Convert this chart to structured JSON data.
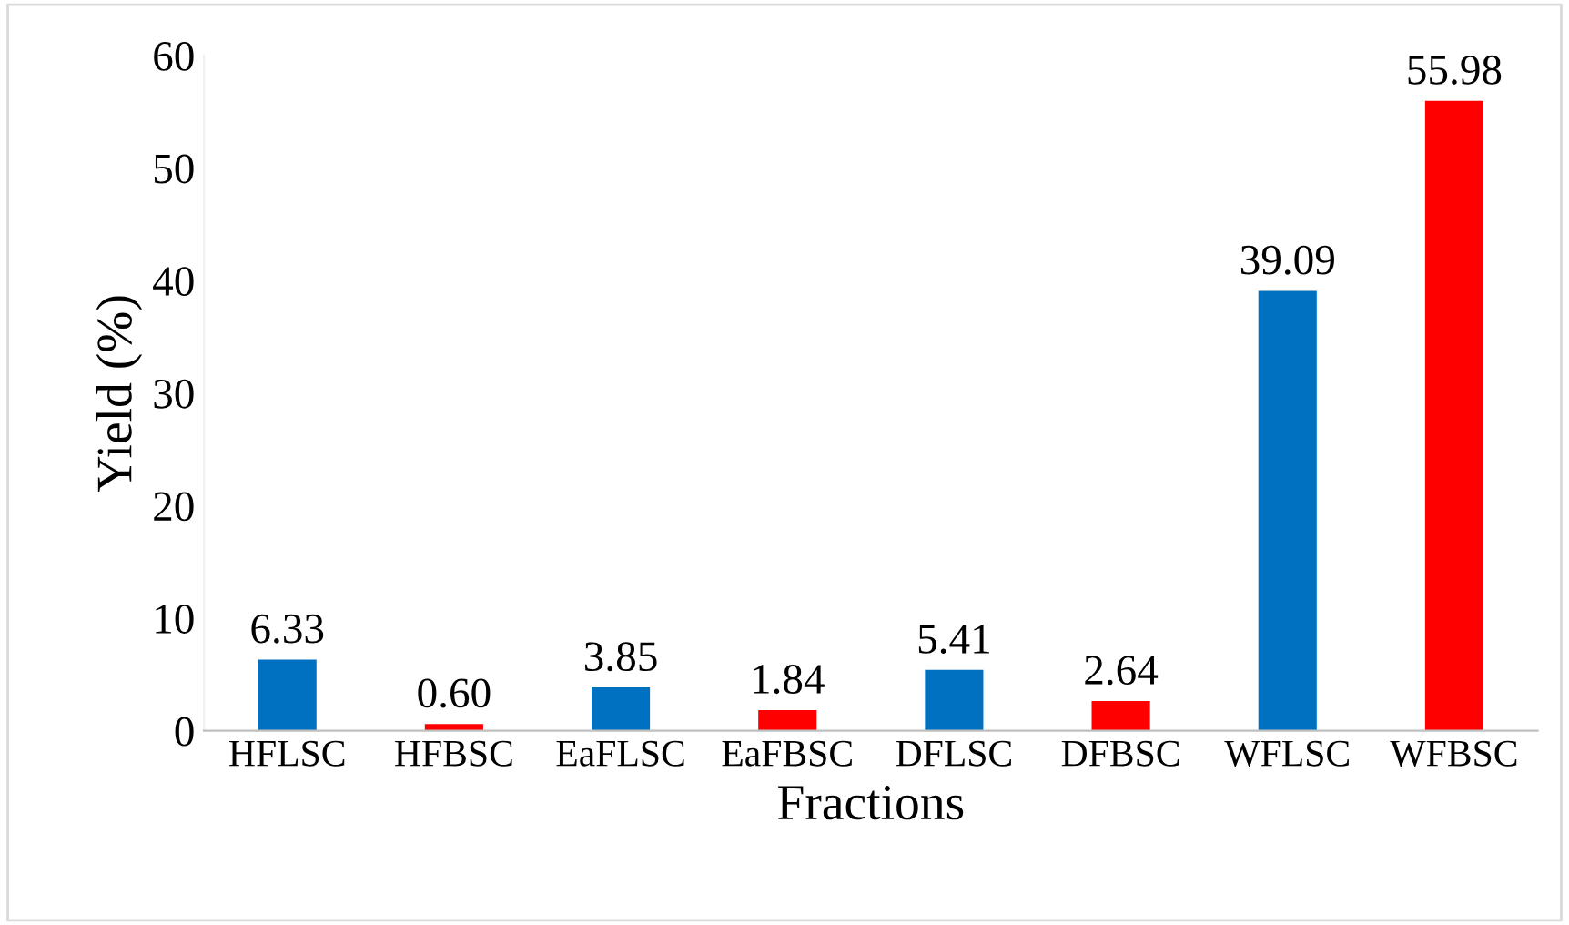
{
  "chart_data": {
    "type": "bar",
    "xlabel": "Fractions",
    "ylabel": "Yield (%)",
    "categories": [
      "HFLSC",
      "HFBSC",
      "EaFLSC",
      "EaFBSC",
      "DFLSC",
      "DFBSC",
      "WFLSC",
      "WFBSC"
    ],
    "values": [
      6.33,
      0.6,
      3.85,
      1.84,
      5.41,
      2.64,
      39.09,
      55.98
    ],
    "value_labels": [
      "6.33",
      "0.60",
      "3.85",
      "1.84",
      "5.41",
      "2.64",
      "39.09",
      "55.98"
    ],
    "colors": [
      "#0070c0",
      "#ff0000",
      "#0070c0",
      "#ff0000",
      "#0070c0",
      "#ff0000",
      "#0070c0",
      "#ff0000"
    ],
    "ylim": [
      0,
      60
    ],
    "yticks": [
      0,
      10,
      20,
      30,
      40,
      50,
      60
    ],
    "grid": false,
    "legend": false
  }
}
